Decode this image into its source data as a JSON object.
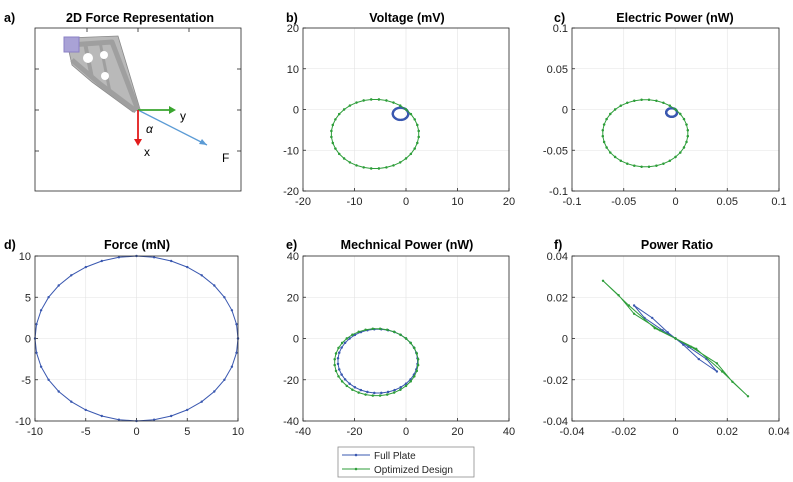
{
  "colors": {
    "full_plate": "#3a58b0",
    "optimized": "#2e9e3a",
    "force_vec": "#5b9bd5",
    "x_arrow": "#e21b1b",
    "y_arrow": "#3aa52f"
  },
  "legend": {
    "items": [
      "Full Plate",
      "Optimized Design"
    ]
  },
  "panels": {
    "a": {
      "label": "a)",
      "title": "2D Force Representation",
      "diagram": {
        "y_label": "y",
        "x_label": "x",
        "angle_label": "α",
        "force_label": "F"
      }
    },
    "b": {
      "label": "b)",
      "title": "Voltage (mV)"
    },
    "c": {
      "label": "c)",
      "title": "Electric Power (nW)"
    },
    "d": {
      "label": "d)",
      "title": "Force (mN)"
    },
    "e": {
      "label": "e)",
      "title": "Mechnical Power (nW)"
    },
    "f": {
      "label": "f)",
      "title": "Power Ratio"
    }
  },
  "chart_data": [
    {
      "panel": "b",
      "type": "line",
      "title": "Voltage (mV)",
      "xlim": [
        -20,
        20
      ],
      "ylim": [
        -20,
        20
      ],
      "grid": true,
      "xticks": [
        "-20",
        "-10",
        "0",
        "10",
        "20"
      ],
      "yticks": [
        "-20",
        "-10",
        "0",
        "10",
        "20"
      ],
      "series": [
        {
          "name": "Full Plate",
          "shape": "figure8",
          "amplitude": 6,
          "points": 72
        },
        {
          "name": "Optimized Design",
          "shape": "figure8",
          "amplitude": 34,
          "points": 72
        }
      ]
    },
    {
      "panel": "c",
      "type": "line",
      "title": "Electric Power (nW)",
      "xlim": [
        -0.1,
        0.1
      ],
      "ylim": [
        -0.1,
        0.1
      ],
      "grid": true,
      "xticks": [
        "-0.1",
        "-0.05",
        "0",
        "0.05",
        "0.1"
      ],
      "yticks": [
        "-0.1",
        "-0.05",
        "0",
        "0.05",
        "0.1"
      ],
      "series": [
        {
          "name": "Full Plate",
          "shape": "figure8",
          "amplitude": 0.021,
          "points": 72
        },
        {
          "name": "Optimized Design",
          "shape": "figure8",
          "amplitude": 0.165,
          "points": 72
        }
      ]
    },
    {
      "panel": "d",
      "type": "line",
      "title": "Force (mN)",
      "xlim": [
        -10,
        10
      ],
      "ylim": [
        -10,
        10
      ],
      "grid": true,
      "xticks": [
        "-10",
        "-5",
        "0",
        "5",
        "10"
      ],
      "yticks": [
        "-10",
        "-5",
        "0",
        "5",
        "10"
      ],
      "series": [
        {
          "name": "Full Plate",
          "shape": "circle",
          "radius": 10,
          "points": 36
        }
      ]
    },
    {
      "panel": "e",
      "type": "line",
      "title": "Mechnical Power (nW)",
      "xlim": [
        -40,
        40
      ],
      "ylim": [
        -40,
        40
      ],
      "grid": true,
      "xticks": [
        "-40",
        "-20",
        "0",
        "20",
        "40"
      ],
      "yticks": [
        "-40",
        "-20",
        "0",
        "20",
        "40"
      ],
      "series": [
        {
          "name": "Full Plate",
          "shape": "figure8",
          "amplitude": 62,
          "points": 72
        },
        {
          "name": "Optimized Design",
          "shape": "figure8",
          "amplitude": 65,
          "points": 72
        }
      ]
    },
    {
      "panel": "f",
      "type": "line",
      "title": "Power Ratio",
      "xlim": [
        -0.04,
        0.04
      ],
      "ylim": [
        -0.04,
        0.04
      ],
      "grid": true,
      "xticks": [
        "-0.04",
        "-0.02",
        "0",
        "0.02",
        "0.04"
      ],
      "yticks": [
        "-0.04",
        "-0.02",
        "0",
        "0.02",
        "0.04"
      ],
      "series": [
        {
          "name": "Full Plate",
          "x": [
            0,
            0.003,
            0.009,
            0.016,
            0.012,
            0.005,
            0,
            -0.003,
            -0.009,
            -0.016,
            -0.012,
            -0.005,
            0
          ],
          "y": [
            0,
            -0.003,
            -0.01,
            -0.016,
            -0.01,
            -0.004,
            0,
            0.003,
            0.01,
            0.016,
            0.01,
            0.004,
            0
          ]
        },
        {
          "name": "Optimized Design",
          "x": [
            0,
            0.006,
            0.016,
            0.022,
            0.028,
            0.018,
            0.008,
            0,
            -0.006,
            -0.016,
            -0.022,
            -0.028,
            -0.018,
            -0.008,
            0
          ],
          "y": [
            0,
            -0.004,
            -0.012,
            -0.021,
            -0.028,
            -0.016,
            -0.005,
            0,
            0.004,
            0.012,
            0.021,
            0.028,
            0.016,
            0.005,
            0
          ]
        }
      ]
    }
  ]
}
